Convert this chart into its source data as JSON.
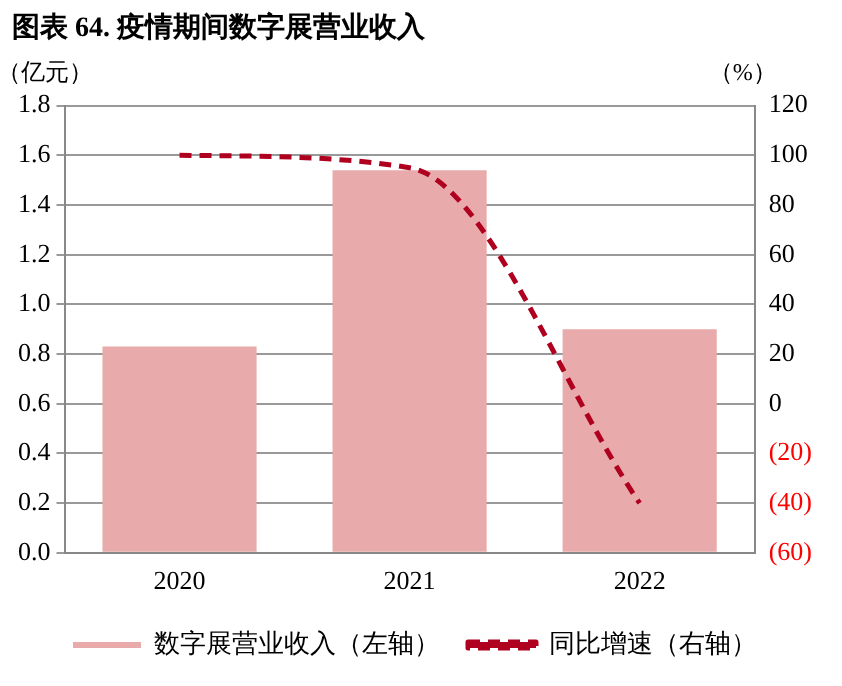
{
  "chart_data": {
    "type": "bar",
    "title": "图表 64. 疫情期间数字展营业收入",
    "ylabel": "（亿元）",
    "y2label": "（%）",
    "categories": [
      "2020",
      "2021",
      "2022"
    ],
    "series": [
      {
        "name": "数字展营业收入（左轴）",
        "color": "#e8aaaa",
        "values": [
          0.83,
          1.54,
          0.9
        ]
      },
      {
        "name": "同比增速（右轴）",
        "type": "line",
        "axis": "y2",
        "color": "#b00020",
        "line_style": "dashed",
        "marker": "none",
        "values": [
          100,
          95,
          -40
        ]
      }
    ],
    "ylim": [
      0,
      1.8
    ],
    "yticks": [
      {
        "value": 0,
        "label": "0.0"
      },
      0.2,
      0.4,
      0.6,
      0.8,
      {
        "value": 1,
        "label": "1.0"
      },
      1.2,
      1.4,
      1.6,
      1.8
    ],
    "y2lim": [
      -60,
      120
    ],
    "y2ticks": [
      {
        "value": -60,
        "label": "(60)"
      },
      {
        "value": -40,
        "label": "(40)"
      },
      {
        "value": -20,
        "label": "(20)"
      },
      0,
      20,
      40,
      60,
      80,
      100,
      120
    ],
    "grid": "y",
    "legend": "bottom"
  }
}
